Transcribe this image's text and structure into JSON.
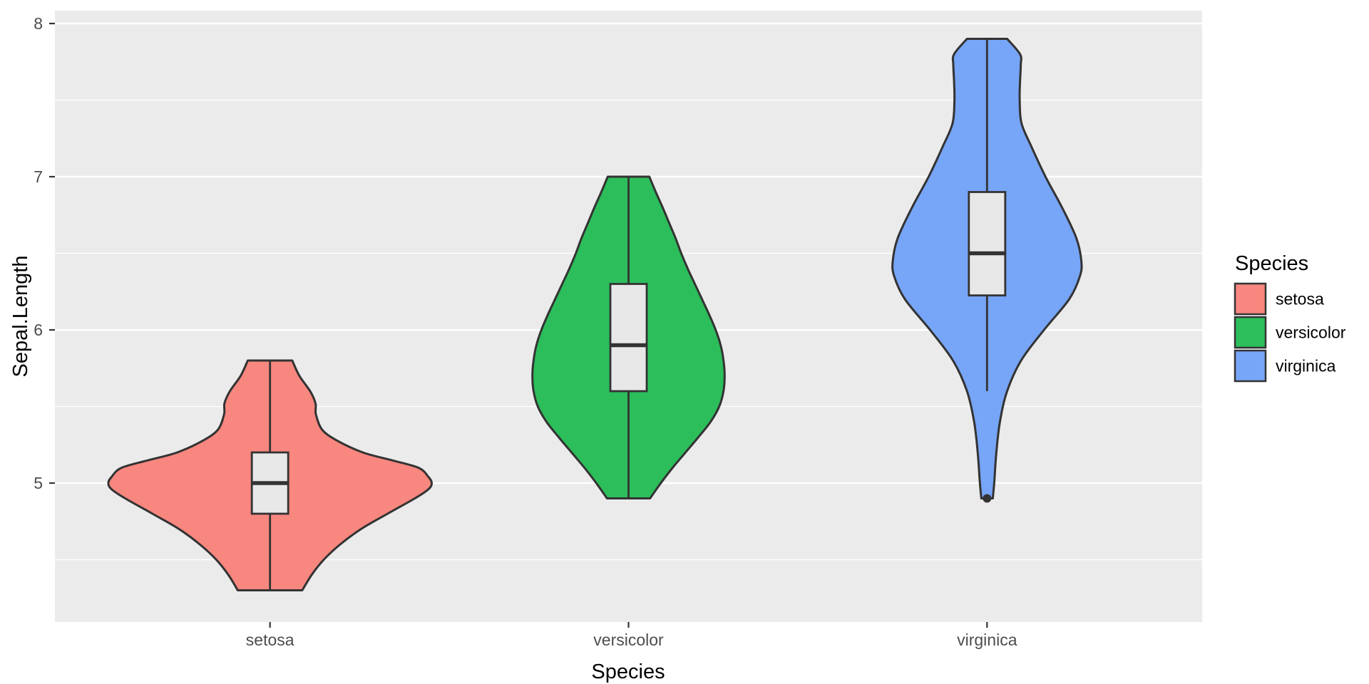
{
  "figure": {
    "background": "#FFFFFF",
    "panel_background": "#EBEBEB",
    "gridline_color": "#FFFFFF",
    "outline_color": "#333333",
    "box_fill": "#E8E8E8"
  },
  "axes": {
    "x": {
      "title": "Species",
      "tick_labels": [
        "setosa",
        "versicolor",
        "virginica"
      ]
    },
    "y": {
      "title": "Sepal.Length",
      "tick_labels": [
        "5",
        "6",
        "7",
        "8"
      ],
      "tick_values": [
        5,
        6,
        7,
        8
      ],
      "minor_gridlines": [
        4.5,
        5.5,
        6.5,
        7.5
      ],
      "visible_range": [
        4.09,
        8.08
      ]
    }
  },
  "legend": {
    "title": "Species",
    "position": "right",
    "items": [
      {
        "label": "setosa",
        "color": "#F8877F"
      },
      {
        "label": "versicolor",
        "color": "#2CBE5B"
      },
      {
        "label": "virginica",
        "color": "#77A5F7"
      }
    ]
  },
  "chart_data": {
    "type": "violin",
    "title": "",
    "xlabel": "Species",
    "ylabel": "Sepal.Length",
    "categories": [
      "setosa",
      "versicolor",
      "virginica"
    ],
    "y_ticks": [
      5,
      6,
      7,
      8
    ],
    "ylim": [
      4.09,
      8.08
    ],
    "grid": true,
    "legend_position": "right",
    "series": [
      {
        "name": "setosa",
        "color": "#F8877F",
        "violin_range": [
          4.3,
          5.8
        ],
        "boxplot": {
          "whisker_low": 4.3,
          "q1": 4.8,
          "median": 5.0,
          "q3": 5.2,
          "whisker_high": 5.8,
          "outliers": []
        },
        "density_profile": [
          [
            4.3,
            0.09
          ],
          [
            4.4,
            0.116
          ],
          [
            4.5,
            0.15
          ],
          [
            4.6,
            0.196
          ],
          [
            4.7,
            0.254
          ],
          [
            4.8,
            0.328
          ],
          [
            4.9,
            0.404
          ],
          [
            4.96,
            0.442
          ],
          [
            5.0,
            0.451
          ],
          [
            5.04,
            0.442
          ],
          [
            5.1,
            0.414
          ],
          [
            5.15,
            0.338
          ],
          [
            5.2,
            0.259
          ],
          [
            5.28,
            0.185
          ],
          [
            5.35,
            0.145
          ],
          [
            5.45,
            0.128
          ],
          [
            5.52,
            0.127
          ],
          [
            5.6,
            0.112
          ],
          [
            5.7,
            0.082
          ],
          [
            5.8,
            0.062
          ]
        ]
      },
      {
        "name": "versicolor",
        "color": "#2CBE5B",
        "violin_range": [
          4.9,
          7.0
        ],
        "boxplot": {
          "whisker_low": 4.9,
          "q1": 5.6,
          "median": 5.9,
          "q3": 6.3,
          "whisker_high": 7.0,
          "outliers": []
        },
        "density_profile": [
          [
            4.9,
            0.06
          ],
          [
            5.0,
            0.09
          ],
          [
            5.1,
            0.123
          ],
          [
            5.2,
            0.159
          ],
          [
            5.3,
            0.195
          ],
          [
            5.4,
            0.229
          ],
          [
            5.5,
            0.253
          ],
          [
            5.6,
            0.265
          ],
          [
            5.7,
            0.268
          ],
          [
            5.8,
            0.265
          ],
          [
            5.9,
            0.257
          ],
          [
            6.0,
            0.243
          ],
          [
            6.1,
            0.225
          ],
          [
            6.2,
            0.205
          ],
          [
            6.3,
            0.185
          ],
          [
            6.4,
            0.165
          ],
          [
            6.5,
            0.147
          ],
          [
            6.6,
            0.131
          ],
          [
            6.7,
            0.113
          ],
          [
            6.8,
            0.095
          ],
          [
            6.9,
            0.076
          ],
          [
            7.0,
            0.058
          ]
        ]
      },
      {
        "name": "virginica",
        "color": "#77A5F7",
        "violin_range": [
          4.9,
          7.9
        ],
        "boxplot": {
          "whisker_low": 5.6,
          "q1": 6.225,
          "median": 6.5,
          "q3": 6.9,
          "whisker_high": 7.9,
          "outliers": [
            4.9
          ]
        },
        "density_profile": [
          [
            4.9,
            0.016
          ],
          [
            5.0,
            0.02
          ],
          [
            5.2,
            0.026
          ],
          [
            5.4,
            0.036
          ],
          [
            5.6,
            0.056
          ],
          [
            5.8,
            0.095
          ],
          [
            6.0,
            0.159
          ],
          [
            6.2,
            0.229
          ],
          [
            6.35,
            0.259
          ],
          [
            6.45,
            0.263
          ],
          [
            6.6,
            0.249
          ],
          [
            6.8,
            0.209
          ],
          [
            7.0,
            0.163
          ],
          [
            7.2,
            0.123
          ],
          [
            7.35,
            0.096
          ],
          [
            7.5,
            0.091
          ],
          [
            7.62,
            0.092
          ],
          [
            7.73,
            0.094
          ],
          [
            7.8,
            0.092
          ],
          [
            7.9,
            0.056
          ]
        ]
      }
    ]
  }
}
